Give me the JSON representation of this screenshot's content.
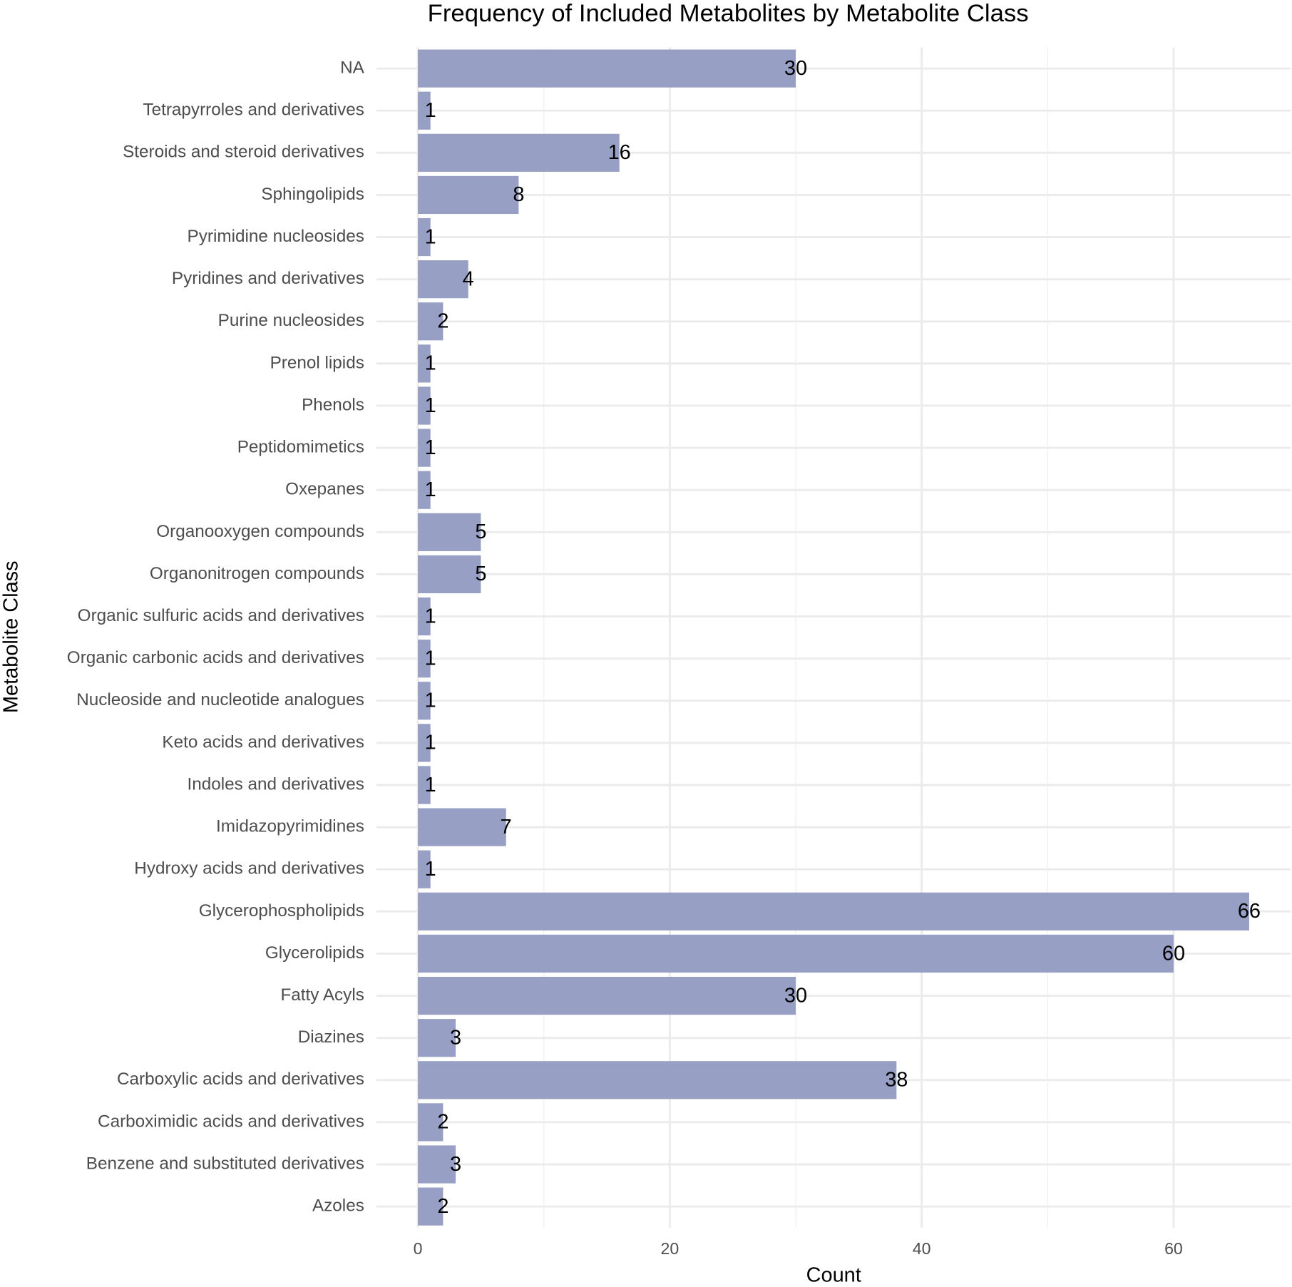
{
  "chart_data": {
    "type": "bar",
    "orientation": "horizontal",
    "title": "Frequency of Included Metabolites by Metabolite Class",
    "x_label": "Count",
    "y_label": "Metabolite Class",
    "categories": [
      "NA",
      "Tetrapyrroles and derivatives",
      "Steroids and steroid derivatives",
      "Sphingolipids",
      "Pyrimidine nucleosides",
      "Pyridines and derivatives",
      "Purine nucleosides",
      "Prenol lipids",
      "Phenols",
      "Peptidomimetics",
      "Oxepanes",
      "Organooxygen compounds",
      "Organonitrogen compounds",
      "Organic sulfuric acids and derivatives",
      "Organic carbonic acids and derivatives",
      "Nucleoside and nucleotide analogues",
      "Keto acids and derivatives",
      "Indoles and derivatives",
      "Imidazopyrimidines",
      "Hydroxy acids and derivatives",
      "Glycerophospholipids",
      "Glycerolipids",
      "Fatty Acyls",
      "Diazines",
      "Carboxylic acids and derivatives",
      "Carboximidic acids and derivatives",
      "Benzene and substituted derivatives",
      "Azoles"
    ],
    "values": [
      30,
      1,
      16,
      8,
      1,
      4,
      2,
      1,
      1,
      1,
      1,
      5,
      5,
      1,
      1,
      1,
      1,
      1,
      7,
      1,
      66,
      60,
      30,
      3,
      38,
      2,
      3,
      2
    ],
    "color": "#989fc4",
    "xlim": [
      -3.3,
      69.3
    ],
    "xticks": [
      0,
      20,
      40,
      60
    ],
    "minor_xticks": [
      10,
      30,
      50
    ],
    "grid": true
  }
}
